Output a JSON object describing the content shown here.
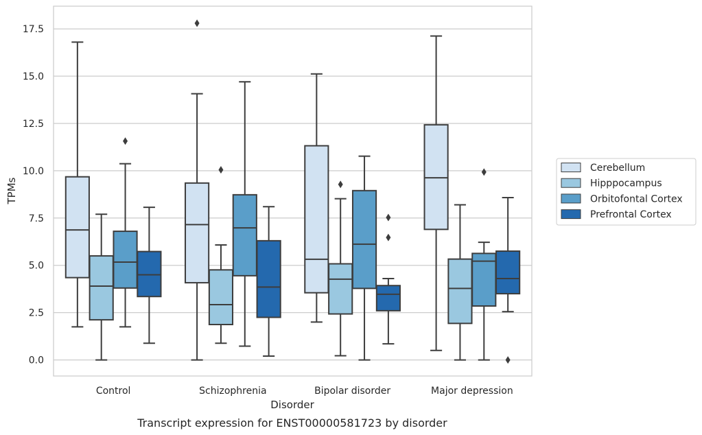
{
  "chart_data": {
    "type": "box",
    "caption": "Transcript expression for ENST00000581723 by disorder",
    "xlabel": "Disorder",
    "ylabel": "TPMs",
    "ylim": [
      -0.85,
      18.7
    ],
    "yticks": [
      "0.0",
      "2.5",
      "5.0",
      "7.5",
      "10.0",
      "12.5",
      "15.0",
      "17.5"
    ],
    "ytick_values": [
      0,
      2.5,
      5,
      7.5,
      10,
      12.5,
      15,
      17.5
    ],
    "grid": "horizontal",
    "legend_position": "right",
    "categories": [
      "Control",
      "Schizophrenia",
      "Bipolar disorder",
      "Major depression"
    ],
    "series": [
      {
        "name": "Cerebellum",
        "color": "#d1e2f2",
        "boxes": [
          {
            "whisker_low": 1.75,
            "q1": 4.35,
            "median": 6.87,
            "q3": 9.68,
            "whisker_high": 16.8,
            "outliers": []
          },
          {
            "whisker_low": 0.0,
            "q1": 4.08,
            "median": 7.15,
            "q3": 9.35,
            "whisker_high": 14.07,
            "outliers": [
              17.8
            ]
          },
          {
            "whisker_low": 2.0,
            "q1": 3.55,
            "median": 5.32,
            "q3": 11.32,
            "whisker_high": 15.12,
            "outliers": []
          },
          {
            "whisker_low": 0.5,
            "q1": 6.9,
            "median": 9.63,
            "q3": 12.43,
            "whisker_high": 17.12,
            "outliers": []
          }
        ]
      },
      {
        "name": "Hipppocampus",
        "color": "#9ac8e0",
        "boxes": [
          {
            "whisker_low": 0.0,
            "q1": 2.12,
            "median": 3.9,
            "q3": 5.5,
            "whisker_high": 7.7,
            "outliers": []
          },
          {
            "whisker_low": 0.88,
            "q1": 1.87,
            "median": 2.92,
            "q3": 4.76,
            "whisker_high": 6.08,
            "outliers": [
              10.05
            ]
          },
          {
            "whisker_low": 0.22,
            "q1": 2.43,
            "median": 4.27,
            "q3": 5.08,
            "whisker_high": 8.52,
            "outliers": [
              9.28
            ]
          },
          {
            "whisker_low": 0.0,
            "q1": 1.93,
            "median": 3.78,
            "q3": 5.33,
            "whisker_high": 8.2,
            "outliers": []
          }
        ]
      },
      {
        "name": "Orbitofontal Cortex",
        "color": "#5a9ec9",
        "boxes": [
          {
            "whisker_low": 1.75,
            "q1": 3.8,
            "median": 5.17,
            "q3": 6.8,
            "whisker_high": 10.37,
            "outliers": [
              11.57
            ]
          },
          {
            "whisker_low": 0.73,
            "q1": 4.45,
            "median": 6.98,
            "q3": 8.73,
            "whisker_high": 14.7,
            "outliers": []
          },
          {
            "whisker_low": 0.0,
            "q1": 3.78,
            "median": 6.12,
            "q3": 8.95,
            "whisker_high": 10.77,
            "outliers": []
          },
          {
            "whisker_low": 0.0,
            "q1": 2.85,
            "median": 5.22,
            "q3": 5.63,
            "whisker_high": 6.22,
            "outliers": [
              9.93
            ]
          }
        ]
      },
      {
        "name": "Prefrontal Cortex",
        "color": "#2469ae",
        "boxes": [
          {
            "whisker_low": 0.88,
            "q1": 3.35,
            "median": 4.5,
            "q3": 5.73,
            "whisker_high": 8.07,
            "outliers": []
          },
          {
            "whisker_low": 0.2,
            "q1": 2.25,
            "median": 3.85,
            "q3": 6.3,
            "whisker_high": 8.1,
            "outliers": []
          },
          {
            "whisker_low": 0.85,
            "q1": 2.6,
            "median": 3.47,
            "q3": 3.93,
            "whisker_high": 4.3,
            "outliers": [
              6.47,
              7.53
            ]
          },
          {
            "whisker_low": 2.55,
            "q1": 3.5,
            "median": 4.3,
            "q3": 5.75,
            "whisker_high": 8.58,
            "outliers": [
              0.0
            ]
          }
        ]
      }
    ]
  }
}
